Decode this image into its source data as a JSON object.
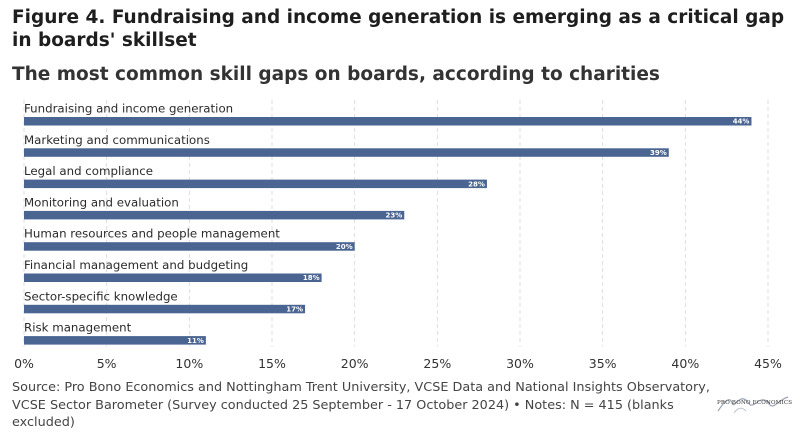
{
  "header": {
    "title": "Figure 4. Fundraising and income generation is emerging as a critical gap in boards' skillset",
    "subtitle": "The most common skill gaps on boards, according to charities"
  },
  "footer": {
    "source": "Source: Pro Bono Economics and Nottingham Trent University, VCSE Data and National Insights Observatory, VCSE Sector Barometer (Survey conducted 25 September - 17 October 2024) • Notes: N = 415 (blanks excluded)",
    "logo_text": "PRO BONO ECONOMICS"
  },
  "chart_data": {
    "type": "bar",
    "orientation": "horizontal",
    "categories": [
      "Fundraising and income generation",
      "Marketing and communications",
      "Legal and compliance",
      "Monitoring and evaluation",
      "Human resources and people management",
      "Financial management and budgeting",
      "Sector-specific knowledge",
      "Risk management"
    ],
    "values": [
      44,
      39,
      28,
      23,
      20,
      18,
      17,
      11
    ],
    "value_labels": [
      "44%",
      "39%",
      "28%",
      "23%",
      "20%",
      "18%",
      "17%",
      "11%"
    ],
    "xlim": [
      0,
      45
    ],
    "x_ticks": [
      0,
      5,
      10,
      15,
      20,
      25,
      30,
      35,
      40,
      45
    ],
    "x_tick_labels": [
      "0%",
      "5%",
      "10%",
      "15%",
      "20%",
      "25%",
      "30%",
      "35%",
      "40%",
      "45%"
    ],
    "grid": "vertical dashed",
    "bar_color": "#4a6592",
    "grid_color": "#dddddd"
  }
}
